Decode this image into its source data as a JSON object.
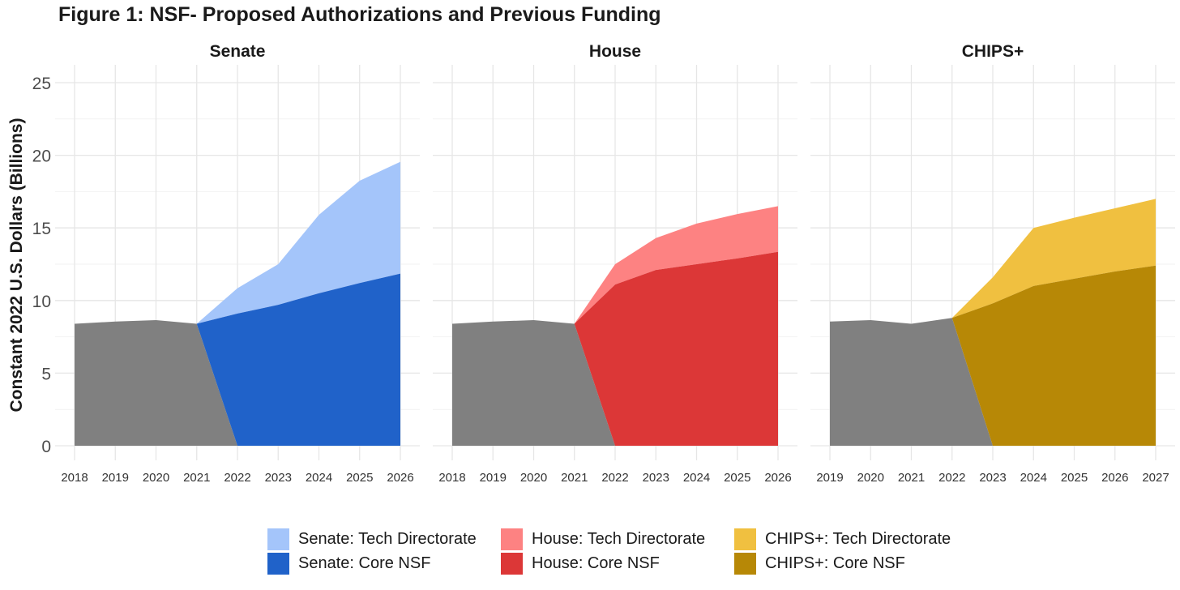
{
  "title": "Figure 1: NSF- Proposed Authorizations and Previous Funding",
  "chart_data": {
    "type": "area",
    "ylabel": "Constant 2022 U.S. Dollars (Billions)",
    "ylim": [
      0,
      25
    ],
    "yticks": [
      0,
      5,
      10,
      15,
      20,
      25
    ],
    "grid": true,
    "legend_position": "bottom",
    "panels": [
      {
        "title": "Senate",
        "x": [
          2018,
          2019,
          2020,
          2021,
          2022,
          2023,
          2024,
          2025,
          2026
        ],
        "previous_funding": [
          8.4,
          8.55,
          8.65,
          8.4,
          0,
          null,
          null,
          null,
          null
        ],
        "series": [
          {
            "name": "Senate: Core NSF",
            "color": "#2062C9",
            "values": [
              null,
              null,
              null,
              8.4,
              9.1,
              9.7,
              10.5,
              11.2,
              11.85
            ]
          },
          {
            "name": "Senate: Tech Directorate",
            "color": "#A4C5FA",
            "values": [
              null,
              null,
              null,
              0,
              1.75,
              2.8,
              5.4,
              7.05,
              7.7
            ]
          }
        ]
      },
      {
        "title": "House",
        "x": [
          2018,
          2019,
          2020,
          2021,
          2022,
          2023,
          2024,
          2025,
          2026
        ],
        "previous_funding": [
          8.4,
          8.55,
          8.65,
          8.4,
          0,
          null,
          null,
          null,
          null
        ],
        "series": [
          {
            "name": "House: Core NSF",
            "color": "#DC3737",
            "values": [
              null,
              null,
              null,
              8.4,
              11.1,
              12.1,
              12.5,
              12.9,
              13.35
            ]
          },
          {
            "name": "House: Tech Directorate",
            "color": "#FD8282",
            "values": [
              null,
              null,
              null,
              0,
              1.4,
              2.2,
              2.8,
              3.05,
              3.15
            ]
          }
        ]
      },
      {
        "title": "CHIPS+",
        "x": [
          2019,
          2020,
          2021,
          2022,
          2023,
          2024,
          2025,
          2026,
          2027
        ],
        "previous_funding": [
          8.55,
          8.65,
          8.4,
          8.8,
          0,
          null,
          null,
          null,
          null
        ],
        "series": [
          {
            "name": "CHIPS+: Core NSF",
            "color": "#B78806",
            "values": [
              null,
              null,
              null,
              8.8,
              9.8,
              11.0,
              11.5,
              12.0,
              12.4
            ]
          },
          {
            "name": "CHIPS+: Tech Directorate",
            "color": "#F0C040",
            "values": [
              null,
              null,
              null,
              0,
              1.8,
              4.0,
              4.2,
              4.35,
              4.6
            ]
          }
        ]
      }
    ],
    "previous_funding_color": "#808080"
  },
  "legend": [
    {
      "label": "Senate: Tech Directorate",
      "color": "#A4C5FA"
    },
    {
      "label": "House: Tech Directorate",
      "color": "#FD8282"
    },
    {
      "label": "CHIPS+: Tech Directorate",
      "color": "#F0C040"
    },
    {
      "label": "Senate: Core NSF",
      "color": "#2062C9"
    },
    {
      "label": "House: Core NSF",
      "color": "#DC3737"
    },
    {
      "label": "CHIPS+: Core NSF",
      "color": "#B78806"
    }
  ]
}
